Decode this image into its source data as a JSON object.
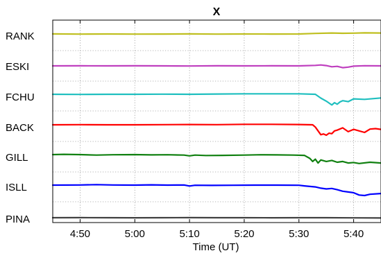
{
  "chart_data": {
    "type": "line",
    "title": "X",
    "xlabel": "Time (UT)",
    "ylabel": "",
    "x_ticks": [
      "4:50",
      "5:00",
      "5:10",
      "5:20",
      "5:30",
      "5:40"
    ],
    "x_tick_minutes": [
      290,
      300,
      310,
      320,
      330,
      340
    ],
    "xlim_minutes": [
      285,
      345
    ],
    "grid": true,
    "series": [
      {
        "name": "RANK",
        "color": "#bfbf1f",
        "x": [
          285,
          290,
          295,
          300,
          305,
          310,
          315,
          320,
          325,
          330,
          333,
          336,
          338,
          340,
          342,
          345
        ],
        "y": [
          0.5,
          0.35,
          0.45,
          0.35,
          0.4,
          0.5,
          0.35,
          0.45,
          0.4,
          0.45,
          0.8,
          1.1,
          0.9,
          1.0,
          1.2,
          1.1
        ]
      },
      {
        "name": "ESKI",
        "color": "#bf3fbf",
        "x": [
          285,
          290,
          295,
          300,
          305,
          310,
          315,
          320,
          325,
          330,
          333,
          334,
          335,
          336,
          337,
          338,
          339,
          340,
          342,
          345
        ],
        "y": [
          0.0,
          0.05,
          0.0,
          0.05,
          0.0,
          -0.1,
          0.05,
          0.0,
          0.05,
          0.0,
          0.3,
          0.6,
          0.2,
          -0.6,
          -0.3,
          -1.2,
          -0.8,
          -0.2,
          0.1,
          0.0
        ]
      },
      {
        "name": "FCHU",
        "color": "#1fbfbf",
        "x": [
          285,
          290,
          295,
          300,
          305,
          310,
          315,
          320,
          325,
          330,
          333,
          334,
          335,
          336,
          336.5,
          337,
          337.5,
          338,
          339,
          340,
          342,
          345
        ],
        "y": [
          0.0,
          -0.1,
          0.0,
          0.0,
          0.1,
          0.0,
          0.2,
          0.3,
          0.3,
          0.3,
          0.0,
          -2.5,
          -4.5,
          -7.0,
          -5.5,
          -6.5,
          -5.0,
          -4.2,
          -4.8,
          -3.0,
          -3.3,
          -2.4
        ]
      },
      {
        "name": "BACK",
        "color": "#ff0000",
        "x": [
          285,
          290,
          295,
          300,
          305,
          310,
          315,
          320,
          325,
          330,
          332.5,
          333,
          334,
          334.5,
          335,
          335.5,
          336,
          336.5,
          337,
          338,
          339,
          340,
          341,
          342,
          343,
          344,
          345
        ],
        "y": [
          0.0,
          0.1,
          0.0,
          0.0,
          0.1,
          0.2,
          0.1,
          0.3,
          0.3,
          0.2,
          0.0,
          -1.5,
          -6.5,
          -6.0,
          -6.8,
          -5.5,
          -5.8,
          -4.0,
          -3.5,
          -2.0,
          -4.5,
          -3.0,
          -4.0,
          -5.0,
          -2.8,
          -2.5,
          -3.0
        ]
      },
      {
        "name": "GILL",
        "color": "#108010",
        "x": [
          285,
          287,
          290,
          293,
          296,
          300,
          303,
          306,
          309,
          310,
          311,
          313,
          316,
          320,
          323,
          326,
          329,
          331,
          332,
          332.5,
          333,
          333.5,
          334,
          335,
          336,
          337,
          338,
          339,
          340,
          341,
          343,
          345
        ],
        "y": [
          0.0,
          0.2,
          0.0,
          -0.3,
          -0.1,
          0.0,
          -0.2,
          -0.1,
          -0.3,
          -0.8,
          -0.3,
          -0.6,
          -0.5,
          -0.3,
          -0.1,
          -0.2,
          -0.3,
          -0.5,
          -2.5,
          -4.5,
          -3.0,
          -5.5,
          -3.5,
          -4.5,
          -3.8,
          -5.0,
          -4.5,
          -5.5,
          -5.2,
          -5.8,
          -5.0,
          -5.5
        ]
      },
      {
        "name": "ISLL",
        "color": "#0000ff",
        "x": [
          285,
          290,
          293,
          296,
          300,
          303,
          306,
          309,
          310,
          311,
          314,
          318,
          322,
          326,
          330,
          331,
          333,
          334,
          335,
          336,
          337,
          338,
          339,
          340,
          341,
          342,
          343,
          345
        ],
        "y": [
          0.0,
          0.1,
          0.3,
          0.1,
          0.0,
          0.2,
          0.0,
          0.1,
          -0.6,
          -0.1,
          -0.2,
          -0.1,
          0.0,
          0.0,
          -0.1,
          -0.5,
          -1.2,
          -2.0,
          -2.5,
          -2.2,
          -3.0,
          -4.0,
          -4.5,
          -5.0,
          -6.5,
          -6.8,
          -6.0,
          -5.5
        ]
      },
      {
        "name": "PINA",
        "color": "#404040",
        "x": [
          285,
          290,
          295,
          300,
          305,
          310,
          315,
          320,
          325,
          330,
          335,
          340,
          345
        ],
        "y": [
          0.0,
          0.05,
          0.0,
          -0.05,
          0.0,
          0.05,
          0.0,
          0.0,
          -0.05,
          0.0,
          0.0,
          -0.1,
          -0.2
        ]
      }
    ]
  }
}
